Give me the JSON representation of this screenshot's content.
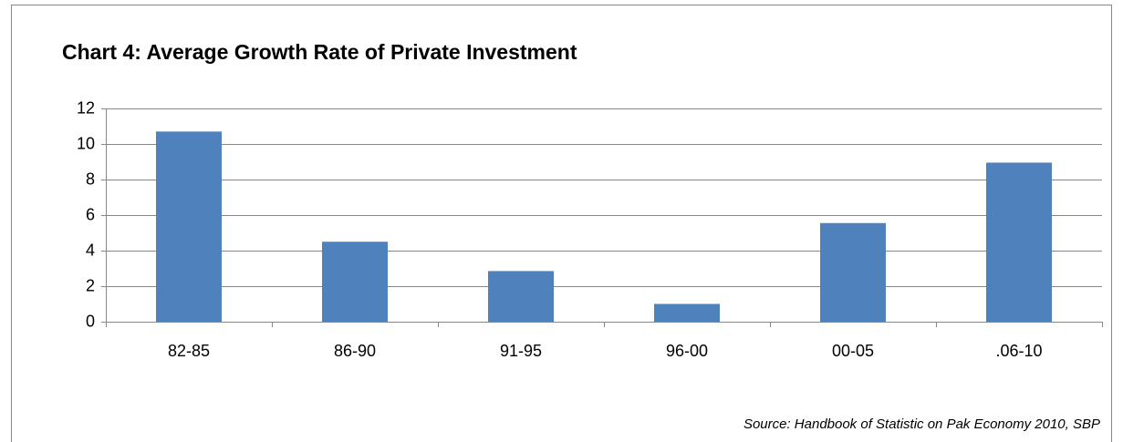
{
  "chart_data": {
    "type": "bar",
    "title": "Chart 4: Average Growth Rate of Private Investment",
    "categories": [
      "82-85",
      "86-90",
      "91-95",
      "96-00",
      "00-05",
      ".06-10"
    ],
    "values": [
      10.7,
      4.5,
      2.85,
      1.0,
      5.55,
      8.95
    ],
    "color": "#4f81bd",
    "ylim": [
      0,
      12
    ],
    "yticks": [
      0,
      2,
      4,
      6,
      8,
      10,
      12
    ],
    "grid": true,
    "source": "Source: Handbook of Statistic on Pak Economy 2010, SBP"
  }
}
